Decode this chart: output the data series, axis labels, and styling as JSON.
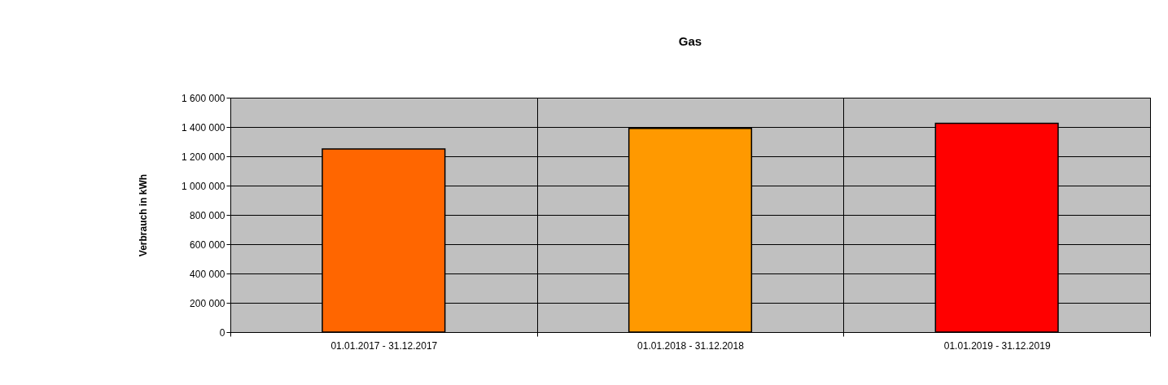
{
  "chart_data": {
    "type": "bar",
    "title": "Gas",
    "ylabel": "Verbrauch in kWh",
    "categories": [
      "01.01.2017 - 31.12.2017",
      "01.01.2018 - 31.12.2018",
      "01.01.2019 - 31.12.2019"
    ],
    "values": [
      1250000,
      1390000,
      1425000
    ],
    "colors": [
      "#ff6600",
      "#ff9900",
      "#ff0000"
    ],
    "ylim": [
      0,
      1600000
    ],
    "yticks": [
      {
        "value": 0,
        "label": "0"
      },
      {
        "value": 200000,
        "label": "200 000"
      },
      {
        "value": 400000,
        "label": "400 000"
      },
      {
        "value": 600000,
        "label": "600 000"
      },
      {
        "value": 800000,
        "label": "800 000"
      },
      {
        "value": 1000000,
        "label": "1 000 000"
      },
      {
        "value": 1200000,
        "label": "1 200 000"
      },
      {
        "value": 1400000,
        "label": "1 400 000"
      },
      {
        "value": 1600000,
        "label": "1 600 000"
      }
    ],
    "grid": true,
    "legend": false
  }
}
